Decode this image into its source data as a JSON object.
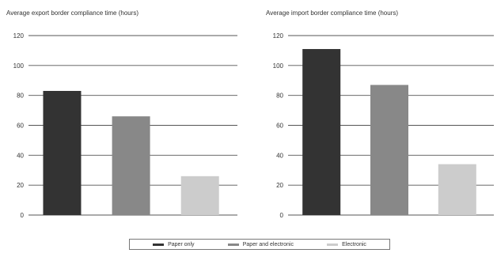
{
  "chart_data": [
    {
      "type": "bar",
      "title": "Average export border compliance time (hours)",
      "categories": [
        "Paper only",
        "Paper and electronic",
        "Electronic"
      ],
      "values": [
        83,
        66,
        26
      ],
      "ylim": [
        0,
        120
      ],
      "yticks": [
        0,
        20,
        40,
        60,
        80,
        100,
        120
      ],
      "grid": true
    },
    {
      "type": "bar",
      "title": "Average import border compliance time (hours)",
      "categories": [
        "Paper only",
        "Paper and electronic",
        "Electronic"
      ],
      "values": [
        111,
        87,
        34
      ],
      "ylim": [
        0,
        120
      ],
      "yticks": [
        0,
        20,
        40,
        60,
        80,
        100,
        120
      ],
      "grid": true
    }
  ],
  "legend": {
    "placement": "bottom",
    "items": [
      {
        "label": "Paper only",
        "color": "#333333"
      },
      {
        "label": "Paper and electronic",
        "color": "#888888"
      },
      {
        "label": "Electronic",
        "color": "#cccccc"
      }
    ]
  }
}
